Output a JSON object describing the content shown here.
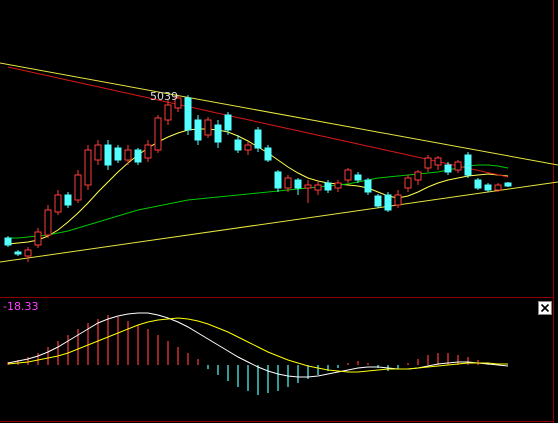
{
  "chart_data": [
    {
      "type": "candlestick",
      "annotation": "5039",
      "ylim": [
        2628,
        6180
      ],
      "up_color": "#ff3c3c",
      "down_color": "#54ffff",
      "open": [
        3324,
        3156,
        3108,
        3240,
        3360,
        3636,
        3840,
        3780,
        3960,
        4260,
        4440,
        4404,
        4260,
        4380,
        4284,
        4380,
        4740,
        4884,
        5004,
        4740,
        4560,
        4680,
        4800,
        4500,
        4380,
        4620,
        4404,
        4116,
        3924,
        4020,
        3924,
        3900,
        3984,
        3924,
        4020,
        4080,
        4020,
        3828,
        3840,
        3720,
        3924,
        4020,
        4164,
        4200,
        4200,
        4140,
        4320,
        4020,
        3960,
        3900,
        3984
      ],
      "high": [
        3348,
        3180,
        3216,
        3444,
        3720,
        3900,
        3876,
        4140,
        4440,
        4500,
        4500,
        4440,
        4440,
        4404,
        4500,
        4800,
        4980,
        5028,
        5039,
        4800,
        4776,
        4740,
        4836,
        4560,
        4476,
        4656,
        4440,
        4140,
        4080,
        4044,
        4020,
        3996,
        4020,
        4020,
        4164,
        4116,
        4044,
        3852,
        3876,
        3900,
        4080,
        4140,
        4320,
        4308,
        4236,
        4260,
        4356,
        4044,
        3984,
        3984,
        3996
      ],
      "low": [
        3216,
        3108,
        3036,
        3204,
        3324,
        3600,
        3684,
        3744,
        3900,
        4200,
        4140,
        4224,
        4200,
        4200,
        4236,
        4344,
        4680,
        4836,
        4560,
        4440,
        4524,
        4404,
        4560,
        4344,
        4320,
        4356,
        4236,
        3876,
        3876,
        3840,
        3744,
        3840,
        3864,
        3876,
        3984,
        3984,
        3840,
        3684,
        3636,
        3684,
        3876,
        3960,
        4116,
        4140,
        4080,
        4104,
        4044,
        3900,
        3876,
        3876,
        3936
      ],
      "close": [
        3240,
        3132,
        3180,
        3396,
        3660,
        3840,
        3720,
        4080,
        4380,
        4440,
        4200,
        4260,
        4380,
        4236,
        4440,
        4764,
        4920,
        5004,
        4620,
        4500,
        4740,
        4476,
        4620,
        4380,
        4440,
        4404,
        4260,
        3924,
        4044,
        3924,
        3960,
        3960,
        3900,
        3984,
        4140,
        4020,
        3876,
        3708,
        3660,
        3840,
        4044,
        4116,
        4284,
        4284,
        4116,
        4236,
        4080,
        3924,
        3900,
        3960,
        3948
      ],
      "series": [
        {
          "color": "#ffff50",
          "values": [
            3252,
            3264,
            3276,
            3300,
            3348,
            3420,
            3516,
            3624,
            3744,
            3876,
            3996,
            4116,
            4224,
            4320,
            4404,
            4476,
            4536,
            4584,
            4620,
            4632,
            4632,
            4620,
            4596,
            4548,
            4488,
            4416,
            4344,
            4260,
            4176,
            4104,
            4044,
            4008,
            3984,
            3972,
            3960,
            3948,
            3924,
            3876,
            3828,
            3804,
            3828,
            3876,
            3936,
            3984,
            4020,
            4044,
            4068,
            4080,
            4092,
            4080,
            4068
          ]
        },
        {
          "color": "#00c800",
          "values": [
            3324,
            3324,
            3336,
            3348,
            3360,
            3384,
            3408,
            3444,
            3480,
            3516,
            3552,
            3588,
            3624,
            3660,
            3684,
            3708,
            3732,
            3756,
            3780,
            3792,
            3804,
            3816,
            3828,
            3840,
            3852,
            3864,
            3876,
            3888,
            3900,
            3912,
            3924,
            3936,
            3948,
            3960,
            3972,
            3996,
            4020,
            4044,
            4056,
            4068,
            4080,
            4092,
            4104,
            4116,
            4140,
            4164,
            4188,
            4200,
            4200,
            4188,
            4164
          ]
        },
        {
          "color": "#d81818",
          "values": [
            5376,
            5350,
            5323,
            5297,
            5270,
            5244,
            5218,
            5191,
            5165,
            5138,
            5112,
            5086,
            5059,
            5033,
            5006,
            4980,
            4954,
            4927,
            4901,
            4874,
            4848,
            4822,
            4795,
            4769,
            4742,
            4716,
            4690,
            4663,
            4637,
            4610,
            4584,
            4558,
            4531,
            4505,
            4478,
            4452,
            4426,
            4399,
            4373,
            4346,
            4320,
            4294,
            4267,
            4241,
            4214,
            4188,
            4162,
            4135,
            4109,
            4082,
            4056
          ]
        }
      ],
      "trendlines": [
        {
          "color": "#e6e640",
          "values": [
            5424,
            4200
          ]
        },
        {
          "color": "#e6e640",
          "values": [
            3036,
            3996
          ]
        }
      ]
    },
    {
      "type": "macd",
      "label": "-18.33",
      "label_color": "#ff40ff",
      "ylim": [
        -110,
        130
      ],
      "up_color": "#ff3c3c",
      "down_color": "#54ffff",
      "histogram": [
        6,
        10,
        16,
        24,
        36,
        48,
        60,
        72,
        84,
        92,
        100,
        96,
        88,
        80,
        72,
        60,
        48,
        36,
        24,
        12,
        -8,
        -20,
        -32,
        -44,
        -52,
        -60,
        -56,
        -52,
        -44,
        -36,
        -28,
        -20,
        -12,
        -6,
        4,
        8,
        4,
        -6,
        -12,
        -8,
        4,
        12,
        20,
        24,
        24,
        20,
        16,
        10,
        4,
        2,
        0
      ],
      "series": [
        {
          "color": "#ffffff",
          "values": [
            4,
            8,
            12,
            18,
            26,
            36,
            48,
            60,
            72,
            84,
            92,
            98,
            102,
            104,
            104,
            100,
            94,
            86,
            76,
            64,
            52,
            40,
            28,
            16,
            6,
            -4,
            -12,
            -18,
            -22,
            -24,
            -24,
            -22,
            -18,
            -14,
            -10,
            -6,
            -4,
            -4,
            -6,
            -8,
            -8,
            -6,
            -2,
            2,
            4,
            6,
            6,
            4,
            2,
            0,
            -2
          ]
        },
        {
          "color": "#ffff00",
          "values": [
            2,
            4,
            6,
            10,
            14,
            18,
            24,
            32,
            40,
            48,
            56,
            64,
            72,
            80,
            86,
            90,
            92,
            94,
            92,
            88,
            82,
            74,
            66,
            56,
            46,
            36,
            26,
            18,
            10,
            4,
            -2,
            -6,
            -10,
            -12,
            -14,
            -14,
            -12,
            -10,
            -8,
            -8,
            -8,
            -6,
            -4,
            -2,
            0,
            2,
            4,
            4,
            4,
            2,
            2
          ]
        }
      ]
    }
  ]
}
